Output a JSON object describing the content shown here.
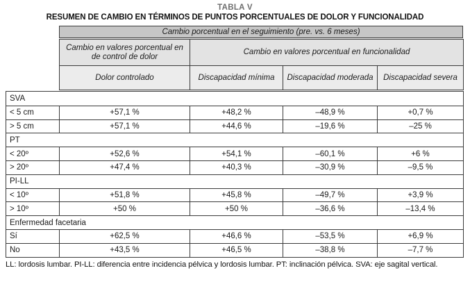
{
  "title": "TABLA V",
  "subtitle": "RESUMEN DE CAMBIO EN TÉRMINOS DE PUNTOS PORCENTUALES DE DOLOR Y FUNCIONALIDAD",
  "header": {
    "top_band": "Cambio porcentual en el seguimiento (pre. vs. 6 meses)",
    "group_pain": "Cambio en valores porcentual en de control de dolor",
    "group_function": "Cambio en valores porcentual en  funcionalidad",
    "columns": [
      "Dolor controlado",
      "Discapacidad mínima",
      "Discapacidad moderada",
      "Discapacidad severa"
    ]
  },
  "sections": [
    {
      "label": "SVA",
      "rows": [
        {
          "label": "< 5 cm",
          "values": [
            "+57,1 %",
            "+48,2 %",
            "–48,9 %",
            "+0,7 %"
          ]
        },
        {
          "label": "> 5 cm",
          "values": [
            "+57,1 %",
            "+44,6 %",
            "–19,6 %",
            "–25 %"
          ]
        }
      ]
    },
    {
      "label": "PT",
      "rows": [
        {
          "label": "< 20º",
          "values": [
            "+52,6 %",
            "+54,1 %",
            "–60,1 %",
            "+6 %"
          ]
        },
        {
          "label": "> 20º",
          "values": [
            "+47,4 %",
            "+40,3 %",
            "–30,9 %",
            "–9,5 %"
          ]
        }
      ]
    },
    {
      "label": "PI-LL",
      "rows": [
        {
          "label": "< 10º",
          "values": [
            "+51,8 %",
            "+45,8 %",
            "–49,7 %",
            "+3,9 %"
          ]
        },
        {
          "label": "> 10º",
          "values": [
            "+50 %",
            "+50 %",
            "–36,6 %",
            "–13,4 %"
          ]
        }
      ]
    },
    {
      "label": "Enfermedad facetaria",
      "rows": [
        {
          "label": "Sí",
          "values": [
            "+62,5 %",
            "+46,6 %",
            "–53,5 %",
            "+6,9 %"
          ]
        },
        {
          "label": "No",
          "values": [
            "+43,5 %",
            "+46,5 %",
            "–38,8 %",
            "–7,7 %"
          ]
        }
      ]
    }
  ],
  "footnote": "LL: lordosis lumbar. PI-LL: diferencia entre incidencia pélvica y lordosis lumbar. PT: inclinación pélvica. SVA: eje sagital vertical.",
  "colors": {
    "band_bg": "#c6c6c6",
    "header_group_bg": "#e3e3e3",
    "header_bg": "#ececec",
    "border": "#3a3a3a",
    "title_color": "#6e6e6e"
  }
}
